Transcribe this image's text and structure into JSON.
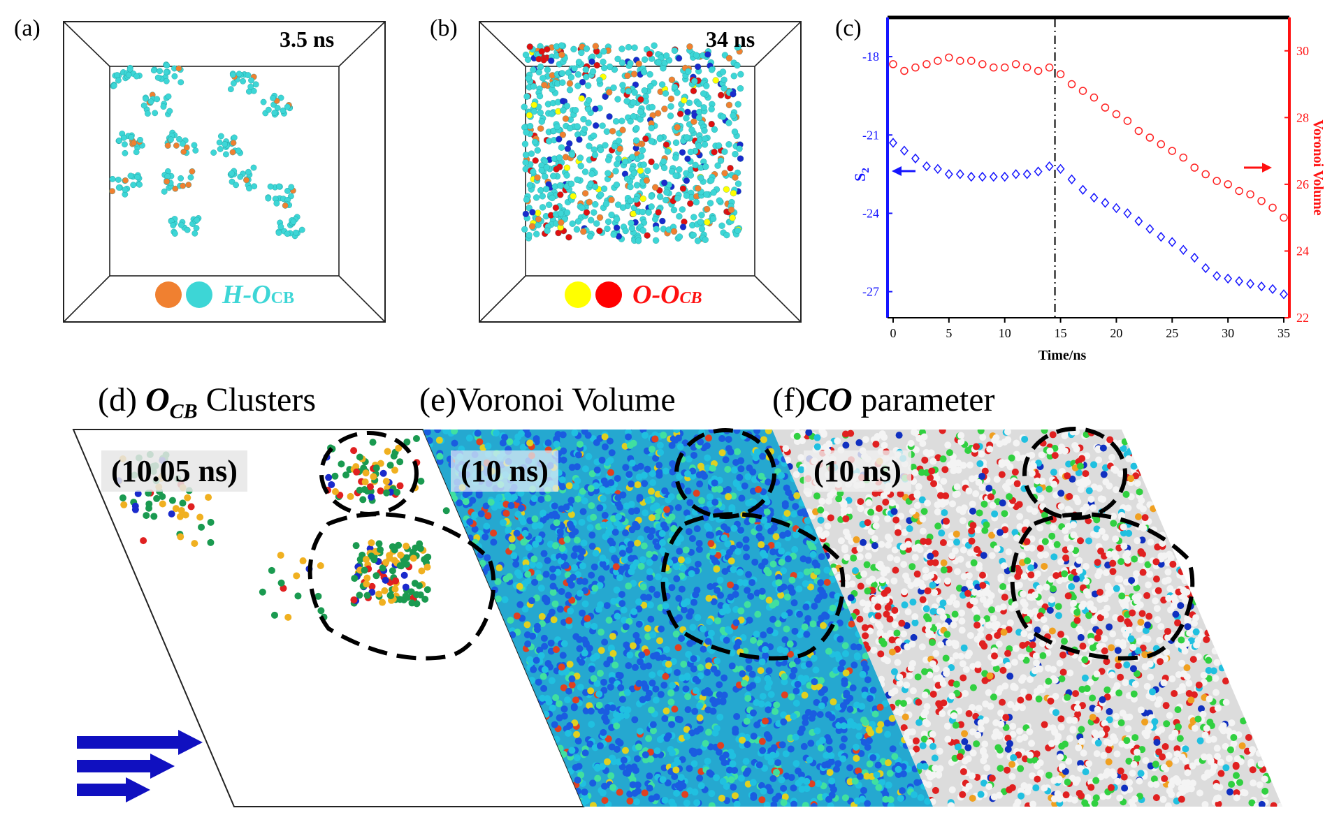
{
  "panel_a": {
    "label": "(a)",
    "time": "3.5 ns",
    "legend_main": "H-O",
    "legend_sub": "CB",
    "legend_color": "#3dd6d6",
    "dot_colors": [
      "#f08030",
      "#3dd6d6"
    ]
  },
  "panel_b": {
    "label": "(b)",
    "time": "34 ns",
    "legend_main": "O-O",
    "legend_sub": "CB",
    "legend_color": "#ff1010",
    "dot_colors": [
      "#ffff00",
      "#ff0000"
    ]
  },
  "panel_c": {
    "label": "(c)"
  },
  "panel_d": {
    "label": "(d)",
    "title_bold": "O",
    "title_sub": "CB",
    "title_rest": "Clusters",
    "time": "(10.05 ns)"
  },
  "panel_e": {
    "label": "(e)",
    "title_rest": "Voronoi Volume",
    "time": "(10 ns)"
  },
  "panel_f": {
    "label": "(f)",
    "title_bold": "CO",
    "title_rest": "parameter",
    "time": "(10 ns)"
  },
  "chart_data": {
    "type": "scatter",
    "xlabel": "Time/ns",
    "ylabel_left": "S",
    "ylabel_left_sub": "2",
    "ylabel_right": "Voronoi Volume",
    "xlim": [
      -0.5,
      35.5
    ],
    "ylim_left": [
      -28,
      -16.5
    ],
    "ylim_right": [
      22,
      31
    ],
    "xticks": [
      0,
      5,
      10,
      15,
      20,
      25,
      30,
      35
    ],
    "yticks_left": [
      -18,
      -21,
      -24,
      -27
    ],
    "yticks_right": [
      22,
      24,
      26,
      28,
      30
    ],
    "vline_x": 14.5,
    "series": [
      {
        "axis": "left",
        "color": "#1515ff",
        "marker": "diamond",
        "x": [
          0,
          1,
          2,
          3,
          4,
          5,
          6,
          7,
          8,
          9,
          10,
          11,
          12,
          13,
          14,
          15,
          16,
          17,
          18,
          19,
          20,
          21,
          22,
          23,
          24,
          25,
          26,
          27,
          28,
          29,
          30,
          31,
          32,
          33,
          34,
          35
        ],
        "y": [
          -21.3,
          -21.6,
          -21.9,
          -22.2,
          -22.3,
          -22.5,
          -22.5,
          -22.6,
          -22.6,
          -22.6,
          -22.6,
          -22.5,
          -22.5,
          -22.4,
          -22.2,
          -22.3,
          -22.7,
          -23.1,
          -23.4,
          -23.6,
          -23.8,
          -24.0,
          -24.3,
          -24.6,
          -24.9,
          -25.1,
          -25.4,
          -25.7,
          -26.1,
          -26.4,
          -26.5,
          -26.6,
          -26.7,
          -26.8,
          -26.9,
          -27.1
        ]
      },
      {
        "axis": "right",
        "color": "#ff2020",
        "marker": "circle",
        "x": [
          0,
          1,
          2,
          3,
          4,
          5,
          6,
          7,
          8,
          9,
          10,
          11,
          12,
          13,
          14,
          15,
          16,
          17,
          18,
          19,
          20,
          21,
          22,
          23,
          24,
          25,
          26,
          27,
          28,
          29,
          30,
          31,
          32,
          33,
          34,
          35
        ],
        "y": [
          29.6,
          29.4,
          29.5,
          29.6,
          29.7,
          29.8,
          29.7,
          29.7,
          29.6,
          29.5,
          29.5,
          29.6,
          29.5,
          29.4,
          29.5,
          29.3,
          29.0,
          28.8,
          28.6,
          28.3,
          28.1,
          27.9,
          27.6,
          27.4,
          27.2,
          27.0,
          26.8,
          26.5,
          26.3,
          26.1,
          26.0,
          25.8,
          25.7,
          25.5,
          25.3,
          25.0
        ]
      }
    ]
  }
}
